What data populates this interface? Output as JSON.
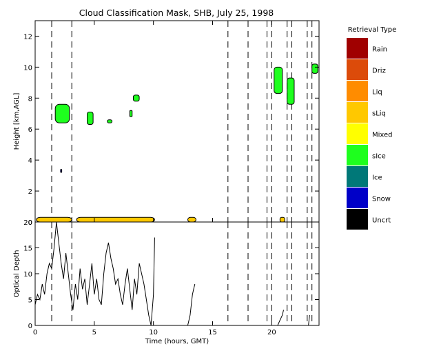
{
  "chart_data": [
    {
      "type": "heatmap",
      "title": "Cloud Classification Mask, SHB, July 25, 1998",
      "ylabel": "Height [km,AGL]",
      "xlabel": "",
      "xlim": [
        0,
        24
      ],
      "ylim": [
        0,
        13
      ],
      "x_ticks": [
        "0",
        "5",
        "10",
        "15",
        "20"
      ],
      "y_ticks": [
        "0",
        "2",
        "4",
        "6",
        "8",
        "10",
        "12"
      ],
      "grid": false,
      "dashed_lines_x": [
        1.4,
        3.1,
        16.3,
        18.0,
        19.6,
        20.0,
        21.3,
        21.7,
        23.0,
        23.4
      ],
      "legend": {
        "title": "Retrieval Type",
        "placement": "right",
        "entries": [
          {
            "label": "Rain",
            "color": "#a00000"
          },
          {
            "label": "Driz",
            "color": "#dc4b0a"
          },
          {
            "label": "Liq",
            "color": "#ff8c00"
          },
          {
            "label": "sLiq",
            "color": "#ffc800"
          },
          {
            "label": "Mixed",
            "color": "#ffff00"
          },
          {
            "label": "sIce",
            "color": "#1eff1e"
          },
          {
            "label": "Ice",
            "color": "#007878"
          },
          {
            "label": "Snow",
            "color": "#0000c8"
          },
          {
            "label": "Uncrt",
            "color": "#000000"
          }
        ]
      },
      "regions": [
        {
          "class": "sIce",
          "x": [
            1.7,
            2.9
          ],
          "y": [
            6.4,
            7.6
          ]
        },
        {
          "class": "sIce",
          "x": [
            4.4,
            4.9
          ],
          "y": [
            6.3,
            7.1
          ]
        },
        {
          "class": "sIce",
          "x": [
            8.3,
            8.8
          ],
          "y": [
            7.8,
            8.2
          ]
        },
        {
          "class": "sIce",
          "x": [
            8.0,
            8.2
          ],
          "y": [
            6.8,
            7.2
          ]
        },
        {
          "class": "sIce",
          "x": [
            6.1,
            6.5
          ],
          "y": [
            6.4,
            6.6
          ]
        },
        {
          "class": "sIce",
          "x": [
            20.2,
            20.9
          ],
          "y": [
            8.3,
            10.0
          ]
        },
        {
          "class": "sIce",
          "x": [
            21.3,
            21.9
          ],
          "y": [
            7.6,
            9.3
          ]
        },
        {
          "class": "sIce",
          "x": [
            23.4,
            23.9
          ],
          "y": [
            9.6,
            10.2
          ]
        },
        {
          "class": "sLiq",
          "x": [
            0.1,
            3.1
          ],
          "y": [
            0.0,
            0.3
          ]
        },
        {
          "class": "sLiq",
          "x": [
            3.5,
            10.1
          ],
          "y": [
            0.0,
            0.3
          ]
        },
        {
          "class": "sLiq",
          "x": [
            12.9,
            13.6
          ],
          "y": [
            0.0,
            0.3
          ]
        },
        {
          "class": "sLiq",
          "x": [
            20.7,
            21.1
          ],
          "y": [
            0.0,
            0.3
          ]
        },
        {
          "class": "Snow",
          "x": [
            2.15,
            2.25
          ],
          "y": [
            3.2,
            3.4
          ]
        }
      ]
    },
    {
      "type": "line",
      "title": "",
      "xlabel": "Time (hours, GMT)",
      "ylabel": "Optical Depth",
      "xlim": [
        0,
        24
      ],
      "ylim": [
        0,
        20
      ],
      "x_ticks": [
        "0",
        "5",
        "10",
        "15",
        "20"
      ],
      "y_ticks": [
        "0",
        "5",
        "10",
        "15",
        "20"
      ],
      "grid": false,
      "dashed_lines_x": [
        1.4,
        3.1,
        16.3,
        18.0,
        19.6,
        20.0,
        21.3,
        21.7,
        23.0,
        23.4
      ],
      "segments": [
        {
          "x": [
            0.0,
            0.2,
            0.4,
            0.6,
            0.8,
            1.0,
            1.2,
            1.4,
            1.6,
            1.8,
            2.0,
            2.2,
            2.4,
            2.6,
            2.8,
            3.0,
            3.2,
            3.4,
            3.6,
            3.8,
            4.0,
            4.2,
            4.4,
            4.6,
            4.8,
            5.0,
            5.2,
            5.4,
            5.6,
            5.8,
            6.0,
            6.2,
            6.4,
            6.6,
            6.8,
            7.0,
            7.2,
            7.4,
            7.6,
            7.8,
            8.0,
            8.2,
            8.4,
            8.6,
            8.8,
            9.0,
            9.2,
            9.4,
            9.6,
            9.8,
            10.0,
            10.1
          ],
          "y": [
            4,
            6,
            5,
            8,
            6,
            10,
            12,
            11,
            15,
            20,
            16,
            12,
            9,
            14,
            10,
            6,
            3,
            8,
            5,
            11,
            7,
            9,
            4,
            8,
            12,
            6,
            9,
            5,
            4,
            10,
            14,
            16,
            13,
            11,
            8,
            9,
            6,
            4,
            8,
            11,
            7,
            3,
            9,
            6,
            12,
            10,
            8,
            5,
            2,
            0,
            6,
            17
          ]
        },
        {
          "x": [
            12.9,
            13.0,
            13.1,
            13.2,
            13.3,
            13.4,
            13.5
          ],
          "y": [
            0,
            1,
            2,
            4,
            6,
            7,
            8
          ]
        },
        {
          "x": [
            20.5,
            20.7,
            20.9,
            21.0
          ],
          "y": [
            0,
            1,
            2,
            3
          ]
        },
        {
          "x": [
            23.1,
            23.2
          ],
          "y": [
            0,
            2
          ]
        }
      ]
    }
  ]
}
